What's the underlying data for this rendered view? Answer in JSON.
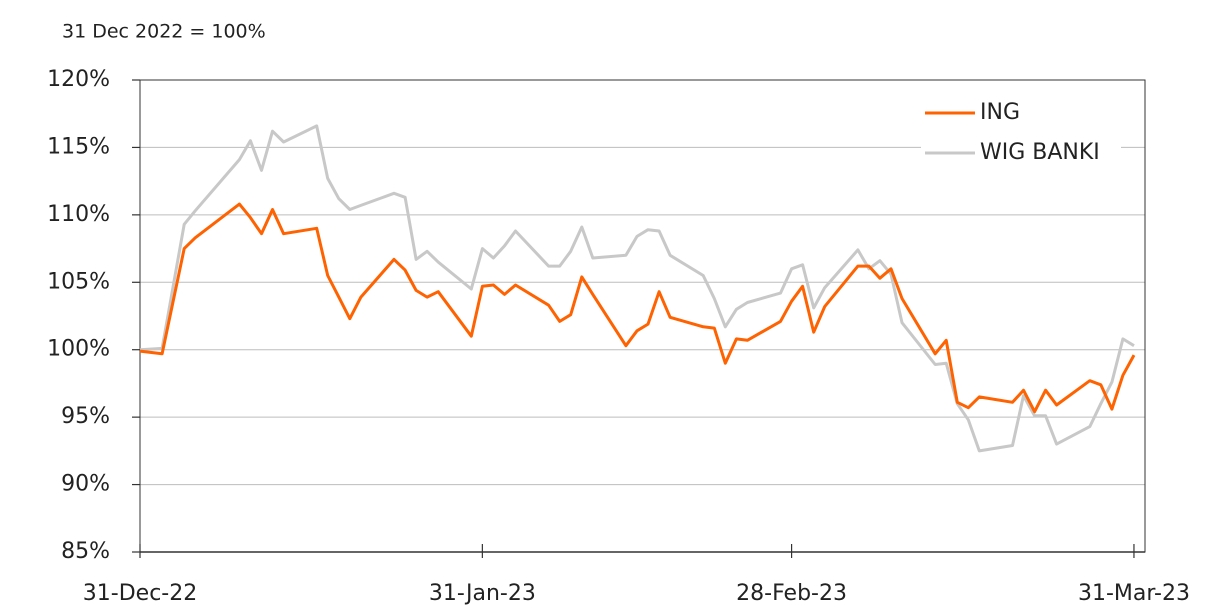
{
  "chart_data": {
    "type": "line",
    "subtitle": "31 Dec 2022 = 100%",
    "x": [
      "2022-12-31",
      "2023-01-02",
      "2023-01-04",
      "2023-01-05",
      "2023-01-09",
      "2023-01-10",
      "2023-01-11",
      "2023-01-12",
      "2023-01-13",
      "2023-01-16",
      "2023-01-17",
      "2023-01-18",
      "2023-01-19",
      "2023-01-20",
      "2023-01-23",
      "2023-01-24",
      "2023-01-25",
      "2023-01-26",
      "2023-01-27",
      "2023-01-30",
      "2023-01-31",
      "2023-02-01",
      "2023-02-02",
      "2023-02-03",
      "2023-02-06",
      "2023-02-07",
      "2023-02-08",
      "2023-02-09",
      "2023-02-10",
      "2023-02-13",
      "2023-02-14",
      "2023-02-15",
      "2023-02-16",
      "2023-02-17",
      "2023-02-20",
      "2023-02-21",
      "2023-02-22",
      "2023-02-23",
      "2023-02-24",
      "2023-02-27",
      "2023-02-28",
      "2023-03-01",
      "2023-03-02",
      "2023-03-03",
      "2023-03-06",
      "2023-03-07",
      "2023-03-08",
      "2023-03-09",
      "2023-03-10",
      "2023-03-13",
      "2023-03-14",
      "2023-03-15",
      "2023-03-16",
      "2023-03-17",
      "2023-03-20",
      "2023-03-21",
      "2023-03-22",
      "2023-03-23",
      "2023-03-24",
      "2023-03-27",
      "2023-03-28",
      "2023-03-29",
      "2023-03-30",
      "2023-03-31"
    ],
    "series": [
      {
        "name": "ING",
        "color": "#ff6200",
        "values": [
          99.9,
          99.7,
          107.5,
          108.3,
          110.8,
          109.8,
          108.6,
          110.4,
          108.6,
          109.0,
          105.5,
          103.9,
          102.3,
          103.9,
          106.7,
          105.9,
          104.4,
          103.9,
          104.3,
          101.0,
          104.7,
          104.8,
          104.1,
          104.8,
          103.3,
          102.1,
          102.6,
          105.4,
          104.1,
          100.3,
          101.4,
          101.9,
          104.3,
          102.4,
          101.7,
          101.6,
          99.0,
          100.8,
          100.7,
          102.1,
          103.6,
          104.7,
          101.3,
          103.2,
          106.2,
          106.2,
          105.3,
          106.0,
          103.8,
          99.7,
          100.7,
          96.1,
          95.7,
          96.5,
          96.1,
          97.0,
          95.4,
          97.0,
          95.9,
          97.7,
          97.4,
          95.6,
          98.1,
          99.6
        ]
      },
      {
        "name": "WIG BANKI",
        "color": "#c8c8c8",
        "values": [
          100.0,
          100.1,
          109.3,
          110.3,
          114.1,
          115.5,
          113.3,
          116.2,
          115.4,
          116.6,
          112.7,
          111.2,
          110.4,
          110.7,
          111.6,
          111.3,
          106.7,
          107.3,
          106.5,
          104.5,
          107.5,
          106.8,
          107.7,
          108.8,
          106.2,
          106.2,
          107.3,
          109.1,
          106.8,
          107.0,
          108.4,
          108.9,
          108.8,
          107.0,
          105.5,
          103.8,
          101.7,
          103.0,
          103.5,
          104.2,
          106.0,
          106.3,
          103.1,
          104.6,
          107.4,
          106.0,
          106.6,
          105.6,
          102.0,
          98.9,
          99.0,
          96.0,
          94.8,
          92.5,
          92.9,
          96.6,
          95.1,
          95.1,
          93.0,
          94.3,
          96.0,
          97.6,
          100.8,
          100.3
        ]
      }
    ],
    "xlim": [
      "2022-12-31",
      "2023-04-01"
    ],
    "xticks": [
      {
        "value": "2022-12-31",
        "label": "31-Dec-22"
      },
      {
        "value": "2023-01-31",
        "label": "31-Jan-23"
      },
      {
        "value": "2023-02-28",
        "label": "28-Feb-23"
      },
      {
        "value": "2023-03-31",
        "label": "31-Mar-23"
      }
    ],
    "ylim": [
      85,
      120
    ],
    "yticks": [
      {
        "value": 85,
        "label": "85%"
      },
      {
        "value": 90,
        "label": "90%"
      },
      {
        "value": 95,
        "label": "95%"
      },
      {
        "value": 100,
        "label": "100%"
      },
      {
        "value": 105,
        "label": "105%"
      },
      {
        "value": 110,
        "label": "110%"
      },
      {
        "value": 115,
        "label": "115%"
      },
      {
        "value": 120,
        "label": "120%"
      }
    ],
    "grid": true,
    "legend": "top-right"
  }
}
